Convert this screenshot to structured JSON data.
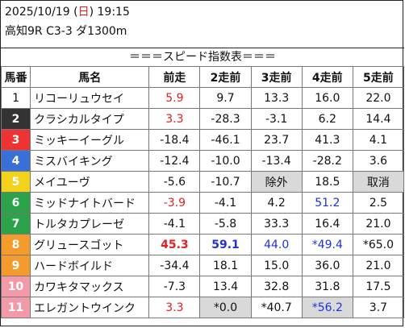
{
  "header": {
    "date": "2025/10/19 (",
    "weekday": "日",
    "time": ") 19:15",
    "race": "高知9R C3-3 ダ1300m"
  },
  "title": "＝＝＝スピード指数表＝＝＝",
  "columns": [
    "馬番",
    "馬名",
    "前走",
    "2走前",
    "3走前",
    "4走前",
    "5走前"
  ],
  "colors": {
    "weekday": "#e02020",
    "red": "#e02020",
    "blue": "#2030e0",
    "highlight_bg": "#d9d9d9"
  },
  "rows": [
    {
      "num": "1",
      "name": "リコーリュウセイ",
      "num_bg": "#ffffff",
      "num_fg": "#111111",
      "vals": [
        {
          "t": "5.9",
          "c": "red"
        },
        {
          "t": "9.7"
        },
        {
          "t": "13.3"
        },
        {
          "t": "16.0"
        },
        {
          "t": "22.0"
        }
      ]
    },
    {
      "num": "2",
      "name": "クラシカルタイプ",
      "num_bg": "#333333",
      "num_fg": "#ffffff",
      "vals": [
        {
          "t": "3.3",
          "c": "red"
        },
        {
          "t": "-28.3"
        },
        {
          "t": "-3.1"
        },
        {
          "t": "6.2"
        },
        {
          "t": "14.4"
        }
      ]
    },
    {
      "num": "3",
      "name": "ミッキーイーグル",
      "num_bg": "#ee3333",
      "num_fg": "#ffffff",
      "vals": [
        {
          "t": "-18.4"
        },
        {
          "t": "-46.1"
        },
        {
          "t": "23.7"
        },
        {
          "t": "41.3"
        },
        {
          "t": "4.1"
        }
      ]
    },
    {
      "num": "4",
      "name": "ミスバイキング",
      "num_bg": "#3a6fd8",
      "num_fg": "#ffffff",
      "vals": [
        {
          "t": "-12.4"
        },
        {
          "t": "-10.0"
        },
        {
          "t": "-13.4"
        },
        {
          "t": "-28.2"
        },
        {
          "t": "3.6"
        }
      ]
    },
    {
      "num": "5",
      "name": "メイユーヴ",
      "num_bg": "#f2d21b",
      "num_fg": "#ffffff",
      "vals": [
        {
          "t": "-5.6"
        },
        {
          "t": "-10.7"
        },
        {
          "t": "除外",
          "g": true
        },
        {
          "t": "18.5"
        },
        {
          "t": "取消",
          "g": true
        }
      ]
    },
    {
      "num": "6",
      "name": "ミッドナイトバード",
      "num_bg": "#2ca24a",
      "num_fg": "#ffffff",
      "vals": [
        {
          "t": "-3.9",
          "c": "red"
        },
        {
          "t": "-4.1"
        },
        {
          "t": "4.2"
        },
        {
          "t": "51.2",
          "c": "blue"
        },
        {
          "t": "2.5"
        }
      ]
    },
    {
      "num": "7",
      "name": "トルタカプレーゼ",
      "num_bg": "#2ca24a",
      "num_fg": "#ffffff",
      "vals": [
        {
          "t": "-4.1"
        },
        {
          "t": "-5.8"
        },
        {
          "t": "33.3"
        },
        {
          "t": "16.4"
        },
        {
          "t": "21.0"
        }
      ]
    },
    {
      "num": "8",
      "name": "グリュースゴット",
      "num_bg": "#f39b2c",
      "num_fg": "#ffffff",
      "vals": [
        {
          "t": "45.3",
          "c": "red",
          "b": true
        },
        {
          "t": "59.1",
          "c": "blue",
          "b": true
        },
        {
          "t": "44.0",
          "c": "blue"
        },
        {
          "t": "*49.4",
          "c": "blue"
        },
        {
          "t": "*65.0"
        }
      ]
    },
    {
      "num": "9",
      "name": "ハードボイルド",
      "num_bg": "#f39b2c",
      "num_fg": "#ffffff",
      "vals": [
        {
          "t": "-34.4"
        },
        {
          "t": "18.1"
        },
        {
          "t": "15.0"
        },
        {
          "t": "36.0"
        },
        {
          "t": "21.0"
        }
      ]
    },
    {
      "num": "10",
      "name": "カワキタマックス",
      "num_bg": "#f29aa8",
      "num_fg": "#ffffff",
      "vals": [
        {
          "t": "-7.3"
        },
        {
          "t": "13.4"
        },
        {
          "t": "32.8"
        },
        {
          "t": "31.8"
        },
        {
          "t": "17.5"
        }
      ]
    },
    {
      "num": "11",
      "name": "エレガントウインク",
      "num_bg": "#f29aa8",
      "num_fg": "#ffffff",
      "vals": [
        {
          "t": "3.3",
          "c": "red"
        },
        {
          "t": "*0.0",
          "g": true
        },
        {
          "t": "*40.7"
        },
        {
          "t": "*56.2",
          "c": "blue",
          "g": true
        },
        {
          "t": "3.7"
        }
      ]
    }
  ]
}
